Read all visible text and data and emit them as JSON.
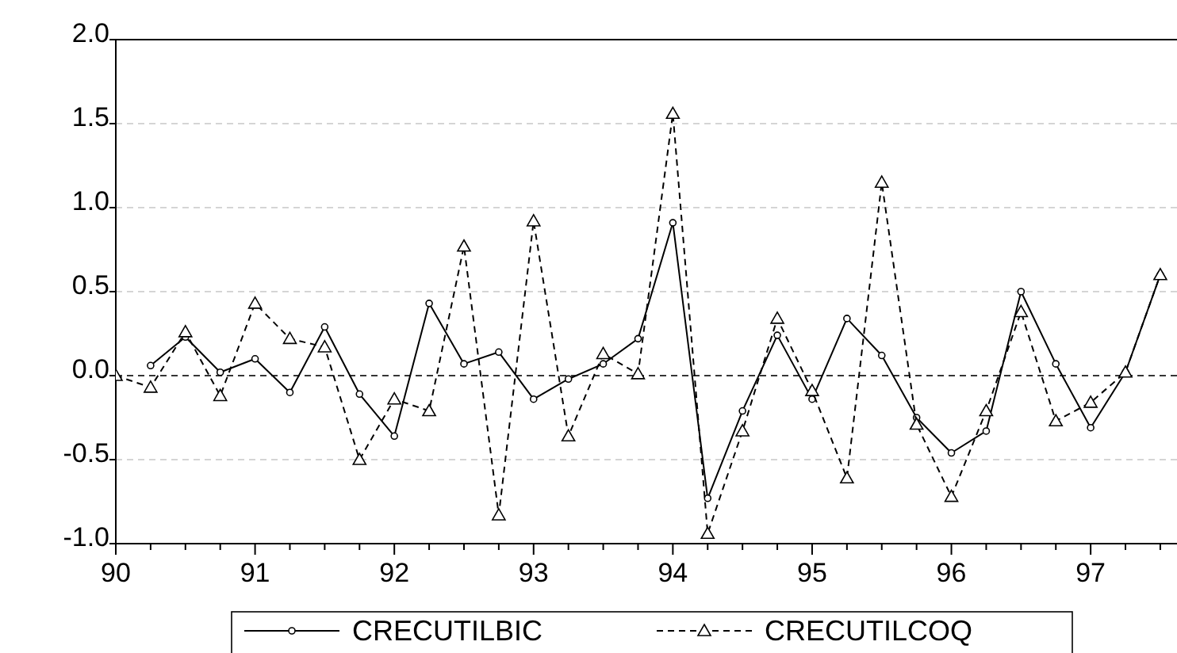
{
  "chart_data": {
    "type": "line",
    "x": [
      90,
      90.25,
      90.5,
      90.75,
      91,
      91.25,
      91.5,
      91.75,
      92,
      92.25,
      92.5,
      92.75,
      93,
      93.25,
      93.5,
      93.75,
      94,
      94.25,
      94.5,
      94.75,
      95,
      95.25,
      95.5,
      95.75,
      96,
      96.25,
      96.5,
      96.75,
      97,
      97.25,
      97.5
    ],
    "series": [
      {
        "name": "CRECUTILBIC",
        "color": "#000000",
        "marker": "circle",
        "line_style": "solid",
        "values": [
          null,
          0.06,
          0.23,
          0.02,
          0.1,
          -0.1,
          0.29,
          -0.11,
          -0.36,
          0.43,
          0.07,
          0.14,
          -0.14,
          -0.02,
          0.07,
          0.22,
          0.91,
          -0.73,
          -0.21,
          0.24,
          -0.14,
          0.34,
          0.12,
          -0.25,
          -0.46,
          -0.33,
          0.5,
          0.07,
          -0.31,
          0.02,
          0.6
        ]
      },
      {
        "name": "CRECUTILCOQ",
        "color": "#000000",
        "marker": "triangle",
        "line_style": "dashed",
        "values": [
          0.0,
          -0.07,
          0.26,
          -0.12,
          0.43,
          0.22,
          0.17,
          -0.5,
          -0.14,
          -0.21,
          0.77,
          -0.83,
          0.92,
          -0.36,
          0.13,
          0.01,
          1.56,
          -0.94,
          -0.33,
          0.34,
          -0.09,
          -0.61,
          1.15,
          -0.29,
          -0.72,
          -0.21,
          0.38,
          -0.27,
          -0.16,
          0.02,
          0.6
        ]
      }
    ],
    "xlim": [
      90,
      97.62
    ],
    "xticks": [
      90,
      {
        "value": 90.25,
        "label": null
      },
      {
        "value": 90.5,
        "label": null
      },
      {
        "value": 90.75,
        "label": null
      },
      91,
      {
        "value": 91.25,
        "label": null
      },
      {
        "value": 91.5,
        "label": null
      },
      {
        "value": 91.75,
        "label": null
      },
      92,
      {
        "value": 92.25,
        "label": null
      },
      {
        "value": 92.5,
        "label": null
      },
      {
        "value": 92.75,
        "label": null
      },
      93,
      {
        "value": 93.25,
        "label": null
      },
      {
        "value": 93.5,
        "label": null
      },
      {
        "value": 93.75,
        "label": null
      },
      94,
      {
        "value": 94.25,
        "label": null
      },
      {
        "value": 94.5,
        "label": null
      },
      {
        "value": 94.75,
        "label": null
      },
      95,
      {
        "value": 95.25,
        "label": null
      },
      {
        "value": 95.5,
        "label": null
      },
      {
        "value": 95.75,
        "label": null
      },
      96,
      {
        "value": 96.25,
        "label": null
      },
      {
        "value": 96.5,
        "label": null
      },
      {
        "value": 96.75,
        "label": null
      },
      97,
      {
        "value": 97.25,
        "label": null
      },
      {
        "value": 97.5,
        "label": null
      }
    ],
    "ylim": [
      -1.0,
      2.0
    ],
    "yticks": [
      {
        "value": -1,
        "label": "-1.0"
      },
      {
        "value": -0.5,
        "label": "-0.5"
      },
      {
        "value": 0,
        "label": "0.0"
      },
      {
        "value": 0.5,
        "label": "0.5"
      },
      {
        "value": 1,
        "label": "1.0"
      },
      {
        "value": 1.5,
        "label": "1.5"
      },
      {
        "value": 2,
        "label": "2.0"
      }
    ],
    "grid": "y",
    "ref_lines": [
      {
        "axis": "y",
        "value": 0,
        "color": "#000000",
        "line_style": "dashed"
      }
    ],
    "legend": "bottom"
  }
}
